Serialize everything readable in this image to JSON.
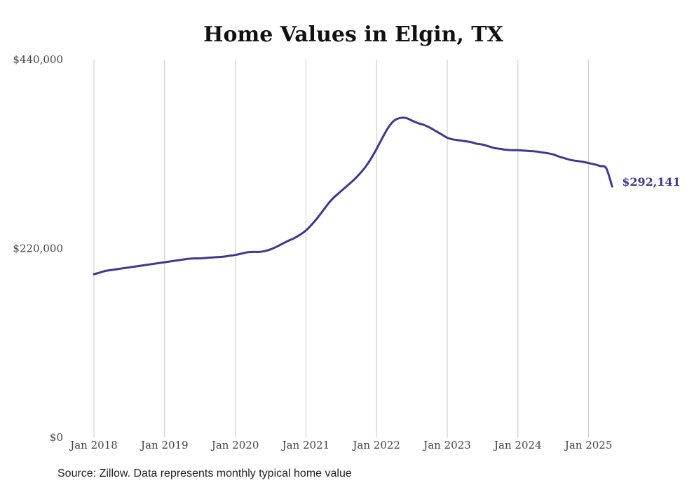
{
  "chart_data": {
    "type": "line",
    "title": "Home Values in Elgin, TX",
    "xlabel": "",
    "ylabel": "",
    "ylim": [
      0,
      440000
    ],
    "xlim": [
      "2018-01",
      "2025-05"
    ],
    "y_ticks": [
      "$0",
      "$220,000",
      "$440,000"
    ],
    "y_tick_values": [
      0,
      220000,
      440000
    ],
    "x_ticks": [
      "Jan 2018",
      "Jan 2019",
      "Jan 2020",
      "Jan 2021",
      "Jan 2022",
      "Jan 2023",
      "Jan 2024",
      "Jan 2025"
    ],
    "grid": "vertical",
    "line_color": "#3f3791",
    "end_label": "$292,141",
    "series": [
      {
        "x": [
          "2018-01",
          "2018-02",
          "2018-03",
          "2018-04",
          "2018-05",
          "2018-06",
          "2018-07",
          "2018-08",
          "2018-09",
          "2018-10",
          "2018-11",
          "2018-12",
          "2019-01",
          "2019-02",
          "2019-03",
          "2019-04",
          "2019-05",
          "2019-06",
          "2019-07",
          "2019-08",
          "2019-09",
          "2019-10",
          "2019-11",
          "2019-12",
          "2020-01",
          "2020-02",
          "2020-03",
          "2020-04",
          "2020-05",
          "2020-06",
          "2020-07",
          "2020-08",
          "2020-09",
          "2020-10",
          "2020-11",
          "2020-12",
          "2021-01",
          "2021-02",
          "2021-03",
          "2021-04",
          "2021-05",
          "2021-06",
          "2021-07",
          "2021-08",
          "2021-09",
          "2021-10",
          "2021-11",
          "2021-12",
          "2022-01",
          "2022-02",
          "2022-03",
          "2022-04",
          "2022-05",
          "2022-06",
          "2022-07",
          "2022-08",
          "2022-09",
          "2022-10",
          "2022-11",
          "2022-12",
          "2023-01",
          "2023-02",
          "2023-03",
          "2023-04",
          "2023-05",
          "2023-06",
          "2023-07",
          "2023-08",
          "2023-09",
          "2023-10",
          "2023-11",
          "2023-12",
          "2024-01",
          "2024-02",
          "2024-03",
          "2024-04",
          "2024-05",
          "2024-06",
          "2024-07",
          "2024-08",
          "2024-09",
          "2024-10",
          "2024-11",
          "2024-12",
          "2025-01",
          "2025-02",
          "2025-03",
          "2025-04",
          "2025-05"
        ],
        "values": [
          190000,
          192000,
          194000,
          195000,
          196000,
          197000,
          198000,
          199000,
          200000,
          201000,
          202000,
          203000,
          204000,
          205000,
          206000,
          207000,
          208000,
          208500,
          208500,
          209000,
          209500,
          210000,
          210500,
          211500,
          212500,
          214000,
          215500,
          216000,
          216000,
          217000,
          219000,
          222000,
          225500,
          229000,
          232000,
          236000,
          241000,
          248000,
          256000,
          265000,
          274000,
          281000,
          287000,
          293000,
          299000,
          306000,
          314000,
          324000,
          336000,
          349000,
          361000,
          369000,
          372000,
          372000,
          369000,
          366000,
          364000,
          361000,
          357000,
          353000,
          349000,
          347000,
          346000,
          345000,
          344000,
          342000,
          341000,
          339000,
          337000,
          336000,
          335000,
          334500,
          334500,
          334000,
          333500,
          333000,
          332000,
          331000,
          329500,
          327000,
          325000,
          323000,
          322000,
          321000,
          319500,
          318000,
          316000,
          313500,
          292141
        ]
      }
    ]
  },
  "source_text": "Source: Zillow. Data represents monthly typical home value"
}
